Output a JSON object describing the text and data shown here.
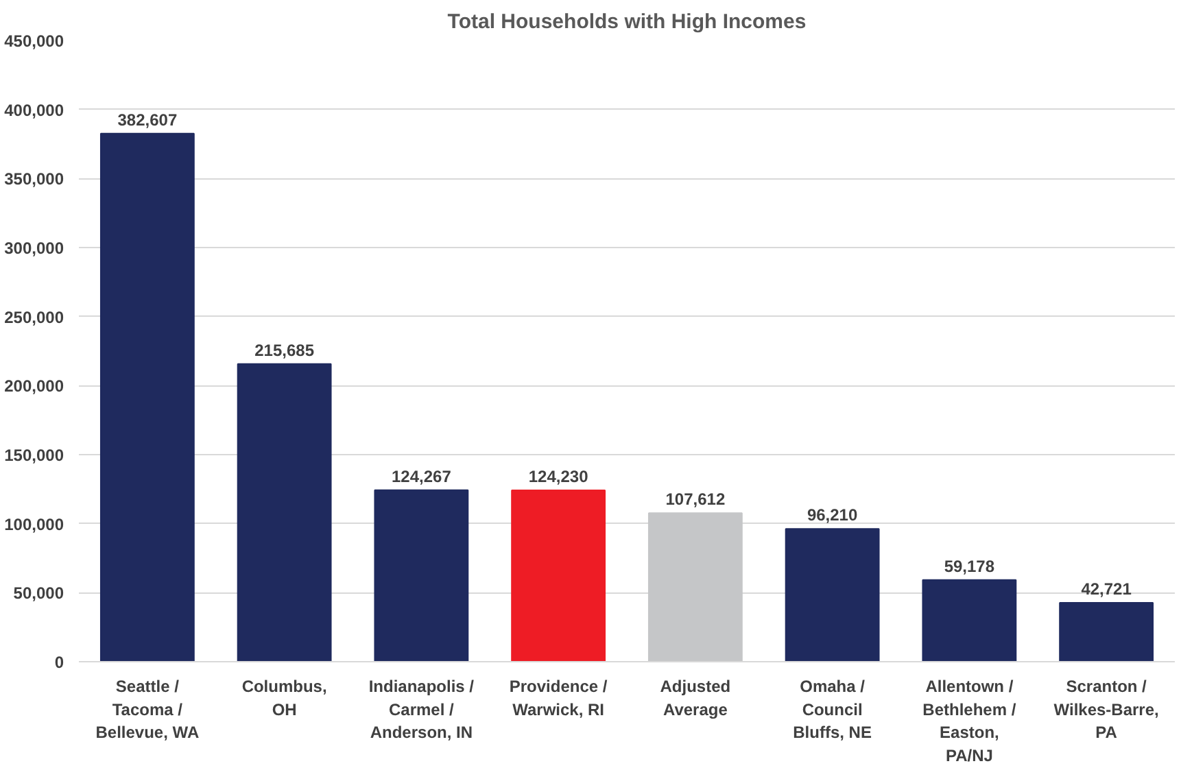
{
  "chart_data": {
    "type": "bar",
    "title": "Total Households with High Incomes",
    "categories": [
      "Seattle /\nTacoma /\nBellevue, WA",
      "Columbus,\nOH",
      "Indianapolis /\nCarmel /\nAnderson, IN",
      "Providence /\nWarwick, RI",
      "Adjusted\nAverage",
      "Omaha /\nCouncil\nBluffs, NE",
      "Allentown /\nBethlehem /\nEaston,\nPA/NJ",
      "Scranton /\nWilkes-Barre,\nPA"
    ],
    "values": [
      382607,
      215685,
      124267,
      124230,
      107612,
      96210,
      59178,
      42721
    ],
    "value_labels": [
      "382,607",
      "215,685",
      "124,267",
      "124,230",
      "107,612",
      "96,210",
      "59,178",
      "42,721"
    ],
    "colors": [
      "#1f2a5e",
      "#1f2a5e",
      "#1f2a5e",
      "#ee1c25",
      "#c5c6c8",
      "#1f2a5e",
      "#1f2a5e",
      "#1f2a5e"
    ],
    "ylim": [
      0,
      450000
    ],
    "yticks": [
      0,
      {
        "value": 50000,
        "label": "50,000"
      },
      {
        "value": 100000,
        "label": "100,000"
      },
      {
        "value": 150000,
        "label": "150,000"
      },
      {
        "value": 200000,
        "label": "200,000"
      },
      {
        "value": 250000,
        "label": "250,000"
      },
      {
        "value": 300000,
        "label": "300,000"
      },
      {
        "value": 350000,
        "label": "350,000"
      },
      {
        "value": 400000,
        "label": "400,000"
      },
      {
        "value": 450000,
        "label": "450,000"
      }
    ],
    "grid": "y"
  }
}
